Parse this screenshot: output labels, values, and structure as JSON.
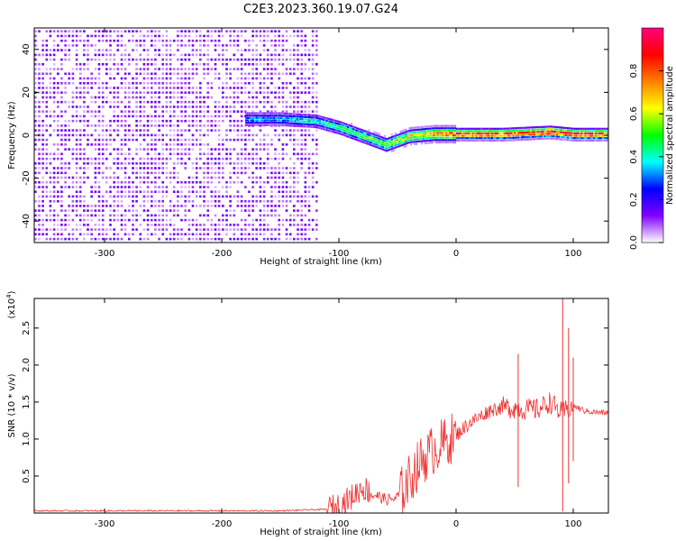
{
  "title": "C2E3.2023.360.19.07.G24",
  "chart_data": [
    {
      "type": "heatmap",
      "xlabel": "Height of straight line (km)",
      "ylabel": "Frequency (Hz)",
      "xlim": [
        -360,
        130
      ],
      "ylim": [
        -50,
        50
      ],
      "xticks": [
        -300,
        -200,
        -100,
        0,
        100
      ],
      "yticks": [
        40,
        20,
        0,
        -20,
        -40
      ],
      "colorbar": {
        "label": "Normalized spectral amplitude",
        "range": [
          0.0,
          1.0
        ],
        "ticks": [
          "0.0",
          "0.2",
          "0.4",
          "0.6",
          "0.8"
        ],
        "colors": [
          "#ffffff",
          "#8000ff",
          "#0000ff",
          "#00ffff",
          "#00ff00",
          "#ffff00",
          "#ff8000",
          "#ff0000",
          "#ff0080"
        ]
      },
      "ridge": [
        {
          "x": -180,
          "freq": 7,
          "amp": 0.35
        },
        {
          "x": -150,
          "freq": 7,
          "amp": 0.38
        },
        {
          "x": -120,
          "freq": 6,
          "amp": 0.45
        },
        {
          "x": -100,
          "freq": 3,
          "amp": 0.5
        },
        {
          "x": -80,
          "freq": -1,
          "amp": 0.55
        },
        {
          "x": -60,
          "freq": -5,
          "amp": 0.6
        },
        {
          "x": -40,
          "freq": -1,
          "amp": 0.7
        },
        {
          "x": -20,
          "freq": 0,
          "amp": 0.8
        },
        {
          "x": 0,
          "freq": 0,
          "amp": 0.9
        },
        {
          "x": 40,
          "freq": 0,
          "amp": 0.9
        },
        {
          "x": 80,
          "freq": 1,
          "amp": 0.95
        },
        {
          "x": 100,
          "freq": 0,
          "amp": 0.95
        },
        {
          "x": 130,
          "freq": 0,
          "amp": 0.9
        }
      ]
    },
    {
      "type": "line",
      "xlabel": "Height of straight line (km)",
      "ylabel": "SNR (10 * v/v)",
      "yscale_label": "(x10",
      "yscale_exp": "4",
      "yscale_close": ")",
      "xlim": [
        -360,
        130
      ],
      "ylim": [
        0,
        2.9
      ],
      "xticks": [
        -300,
        -200,
        -100,
        0,
        100
      ],
      "yticks": [
        "0.5",
        "1.0",
        "1.5",
        "2.0",
        "2.5"
      ],
      "color": "#ee3333",
      "series": {
        "x": [
          -360,
          -300,
          -200,
          -150,
          -110,
          -100,
          -90,
          -80,
          -70,
          -60,
          -50,
          -40,
          -30,
          -20,
          -10,
          0,
          10,
          20,
          30,
          40,
          50,
          60,
          70,
          80,
          90,
          100,
          110,
          120,
          130
        ],
        "y": [
          0.03,
          0.03,
          0.03,
          0.03,
          0.05,
          0.1,
          0.2,
          0.35,
          0.25,
          0.18,
          0.2,
          0.45,
          0.7,
          0.85,
          0.95,
          1.05,
          1.2,
          1.3,
          1.4,
          1.43,
          1.42,
          1.4,
          1.4,
          1.5,
          1.35,
          1.45,
          1.38,
          1.36,
          1.35
        ]
      },
      "spikes": [
        {
          "x": 53,
          "high": 2.15,
          "low": 0.35
        },
        {
          "x": 91,
          "high": 2.9,
          "low": 0.02
        },
        {
          "x": 96,
          "high": 2.5,
          "low": 0.4
        },
        {
          "x": 100,
          "high": 2.1,
          "low": 0.7
        }
      ]
    }
  ]
}
